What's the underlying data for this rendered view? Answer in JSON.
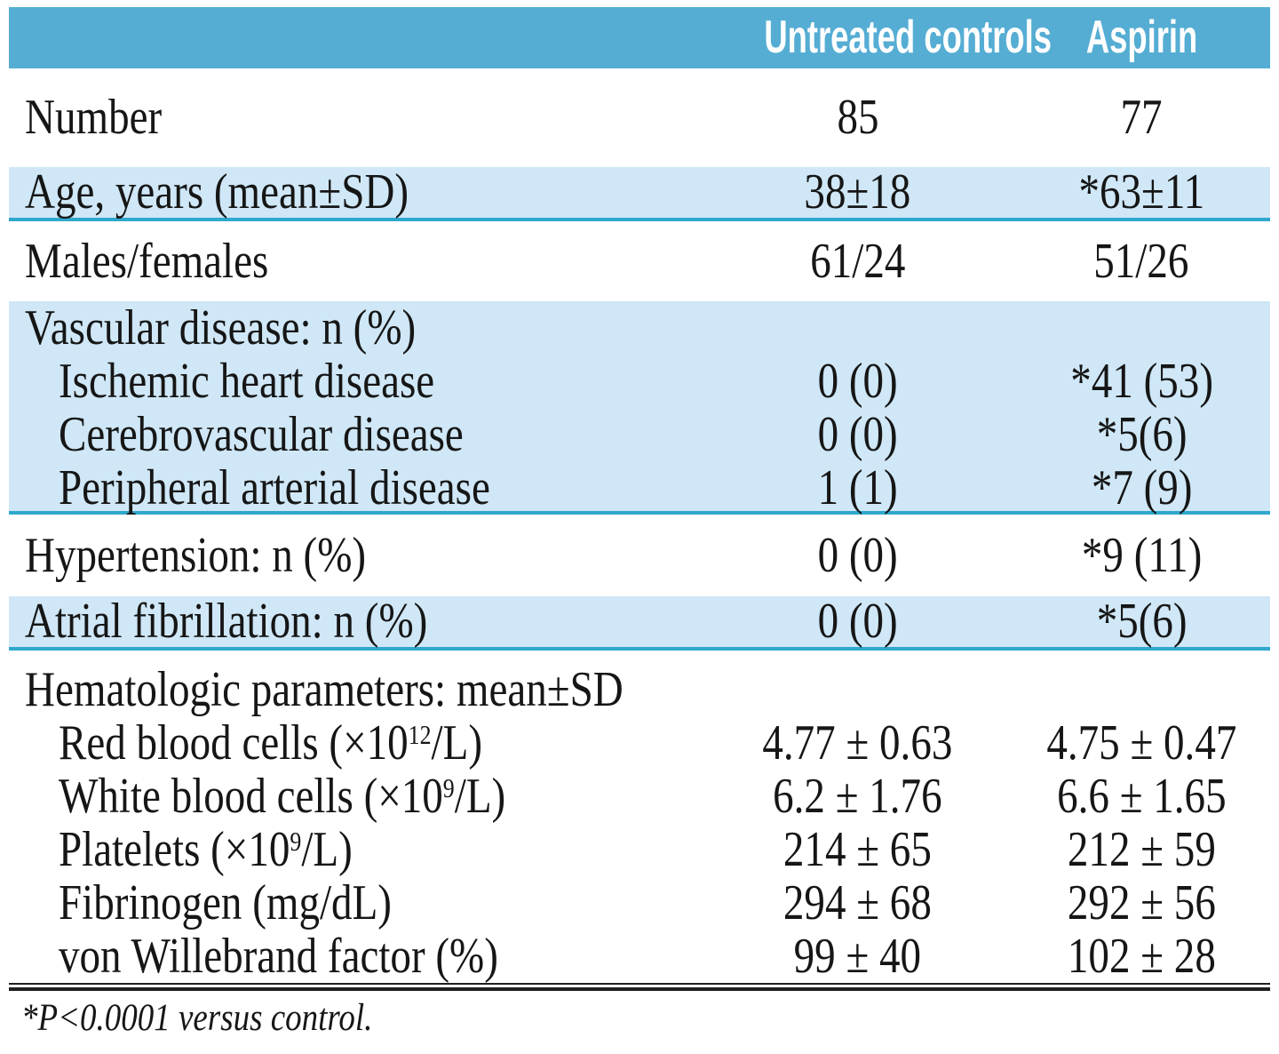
{
  "header": {
    "untreated": "Untreated controls",
    "aspirin": "Aspirin"
  },
  "rows": {
    "number": {
      "label": "Number",
      "untreated": "85",
      "aspirin": "77"
    },
    "age": {
      "label": "Age, years (mean±SD)",
      "untreated": "38±18",
      "aspirin": "*63±11"
    },
    "males_females": {
      "label": "Males/females",
      "untreated": "61/24",
      "aspirin": "51/26"
    },
    "vascular": {
      "group_label": "Vascular disease: n (%)",
      "ischemic": {
        "label": "Ischemic heart disease",
        "untreated": "0 (0)",
        "aspirin": "*41 (53)"
      },
      "cerebrovascular": {
        "label": "Cerebrovascular disease",
        "untreated": "0 (0)",
        "aspirin": "*5(6)"
      },
      "peripheral": {
        "label": "Peripheral arterial disease",
        "untreated": "1 (1)",
        "aspirin": "*7 (9)"
      }
    },
    "hypertension": {
      "label": "Hypertension: n (%)",
      "untreated": "0 (0)",
      "aspirin": "*9 (11)"
    },
    "atrial_fibrillation": {
      "label": "Atrial fibrillation: n (%)",
      "untreated": "0 (0)",
      "aspirin": "*5(6)"
    },
    "hematologic": {
      "group_label": "Hematologic parameters: mean±SD",
      "red_blood_cells": {
        "label_pre": "Red blood cells (×10",
        "label_sup": "12",
        "label_post": "/L)",
        "untreated": "4.77 ± 0.63",
        "aspirin": "4.75 ± 0.47"
      },
      "white_blood_cells": {
        "label_pre": "White blood cells (×10",
        "label_sup": "9",
        "label_post": "/L)",
        "untreated": "6.2 ± 1.76",
        "aspirin": "6.6 ± 1.65"
      },
      "platelets": {
        "label_pre": "Platelets (×10",
        "label_sup": "9",
        "label_post": "/L)",
        "untreated": "214 ± 65",
        "aspirin": "212 ± 59"
      },
      "fibrinogen": {
        "label": "Fibrinogen (mg/dL)",
        "untreated": "294 ± 68",
        "aspirin": "292 ± 56"
      },
      "von_willebrand": {
        "label": "von Willebrand factor (%)",
        "untreated": "99 ± 40",
        "aspirin": "102 ± 28"
      }
    }
  },
  "footnote": "*P<0.0001 versus control.",
  "colors": {
    "header_bg": "#55ADD3",
    "band_bg": "#CFE7F6",
    "band_border": "#2FA8CD",
    "text": "#161616",
    "header_text": "#FFFFFF"
  }
}
